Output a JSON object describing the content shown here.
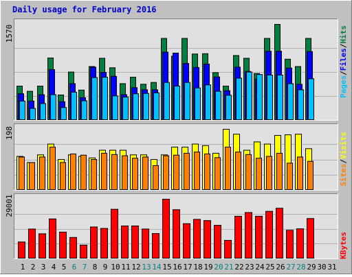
{
  "title": "Daily usage for February 2016",
  "colors": {
    "background": "#c0c0c0",
    "plot_bg": "#e0e0e0",
    "hits": "#008040",
    "files": "#0000ff",
    "pages": "#00c0ff",
    "visits": "#ffff00",
    "sites": "#ff8000",
    "kbytes": "#ff0000",
    "weekend_day": "#008080",
    "weekday": "#000000"
  },
  "chart_data": [
    {
      "type": "bar",
      "panel": "top",
      "ymax_label": "1570",
      "ymax": 1570,
      "right_label": [
        "Pages",
        "Files",
        "Hits"
      ],
      "categories": [
        "1",
        "2",
        "3",
        "4",
        "5",
        "6",
        "7",
        "8",
        "9",
        "10",
        "11",
        "12",
        "13",
        "14",
        "15",
        "16",
        "17",
        "18",
        "19",
        "20",
        "21",
        "22",
        "23",
        "24",
        "25",
        "26",
        "27",
        "28",
        "29"
      ],
      "series": [
        {
          "name": "Hits",
          "values": [
            560,
            475,
            560,
            1020,
            415,
            790,
            495,
            880,
            1015,
            860,
            600,
            705,
            590,
            620,
            1340,
            1050,
            1340,
            1085,
            1090,
            780,
            560,
            1060,
            1015,
            765,
            1340,
            1570,
            1000,
            880,
            1340
          ]
        },
        {
          "name": "Files",
          "values": [
            435,
            315,
            420,
            830,
            305,
            600,
            370,
            870,
            785,
            720,
            420,
            535,
            500,
            500,
            1115,
            1100,
            930,
            865,
            920,
            710,
            485,
            870,
            800,
            675,
            1130,
            1130,
            855,
            590,
            1125
          ]
        },
        {
          "name": "Pages",
          "values": [
            315,
            195,
            275,
            420,
            210,
            460,
            320,
            700,
            705,
            400,
            380,
            435,
            440,
            450,
            620,
            560,
            620,
            530,
            580,
            475,
            410,
            690,
            790,
            750,
            740,
            740,
            600,
            500,
            680
          ]
        }
      ]
    },
    {
      "type": "bar",
      "panel": "middle",
      "ymax_label": "198",
      "ymax": 198,
      "right_label": [
        "Sites",
        "Visits"
      ],
      "categories": [
        "1",
        "2",
        "3",
        "4",
        "5",
        "6",
        "7",
        "8",
        "9",
        "10",
        "11",
        "12",
        "13",
        "14",
        "15",
        "16",
        "17",
        "18",
        "19",
        "20",
        "21",
        "22",
        "23",
        "24",
        "25",
        "26",
        "27",
        "28",
        "29"
      ],
      "series": [
        {
          "name": "Visits",
          "values": [
            110,
            90,
            115,
            150,
            100,
            115,
            110,
            105,
            130,
            130,
            130,
            115,
            115,
            100,
            115,
            140,
            140,
            150,
            145,
            120,
            198,
            182,
            130,
            157,
            150,
            178,
            180,
            182,
            135
          ]
        },
        {
          "name": "Sites",
          "values": [
            108,
            90,
            108,
            140,
            90,
            118,
            114,
            100,
            120,
            116,
            112,
            104,
            108,
            80,
            112,
            114,
            120,
            124,
            118,
            106,
            140,
            124,
            116,
            104,
            110,
            120,
            88,
            108,
            94
          ]
        }
      ]
    },
    {
      "type": "bar",
      "panel": "bottom",
      "ymax_label": "29001",
      "ymax": 29001,
      "right_label": [
        "KBytes"
      ],
      "categories": [
        "1",
        "2",
        "3",
        "4",
        "5",
        "6",
        "7",
        "8",
        "9",
        "10",
        "11",
        "12",
        "13",
        "14",
        "15",
        "16",
        "17",
        "18",
        "19",
        "20",
        "21",
        "22",
        "23",
        "24",
        "25",
        "26",
        "27",
        "28",
        "29"
      ],
      "series": [
        {
          "name": "KBytes",
          "values": [
            8200,
            14500,
            12200,
            19400,
            13000,
            10400,
            6700,
            15500,
            14800,
            24100,
            16000,
            16000,
            14500,
            12300,
            29001,
            23900,
            17100,
            19200,
            18600,
            16300,
            9000,
            20700,
            22500,
            20700,
            23100,
            24600,
            13900,
            14600,
            19600
          ]
        }
      ]
    }
  ],
  "x_axis": {
    "days": [
      {
        "label": "1",
        "weekend": false
      },
      {
        "label": "2",
        "weekend": false
      },
      {
        "label": "3",
        "weekend": false
      },
      {
        "label": "4",
        "weekend": false
      },
      {
        "label": "5",
        "weekend": false
      },
      {
        "label": "6",
        "weekend": true
      },
      {
        "label": "7",
        "weekend": true
      },
      {
        "label": "8",
        "weekend": false
      },
      {
        "label": "9",
        "weekend": false
      },
      {
        "label": "10",
        "weekend": false
      },
      {
        "label": "11",
        "weekend": false
      },
      {
        "label": "12",
        "weekend": false
      },
      {
        "label": "13",
        "weekend": true
      },
      {
        "label": "14",
        "weekend": true
      },
      {
        "label": "15",
        "weekend": false
      },
      {
        "label": "16",
        "weekend": false
      },
      {
        "label": "17",
        "weekend": false
      },
      {
        "label": "18",
        "weekend": false
      },
      {
        "label": "19",
        "weekend": false
      },
      {
        "label": "20",
        "weekend": true
      },
      {
        "label": "21",
        "weekend": true
      },
      {
        "label": "22",
        "weekend": false
      },
      {
        "label": "23",
        "weekend": false
      },
      {
        "label": "24",
        "weekend": false
      },
      {
        "label": "25",
        "weekend": false
      },
      {
        "label": "26",
        "weekend": false
      },
      {
        "label": "27",
        "weekend": true
      },
      {
        "label": "28",
        "weekend": true
      },
      {
        "label": "29",
        "weekend": false
      },
      {
        "label": "30",
        "weekend": false
      },
      {
        "label": "31",
        "weekend": false
      }
    ]
  }
}
